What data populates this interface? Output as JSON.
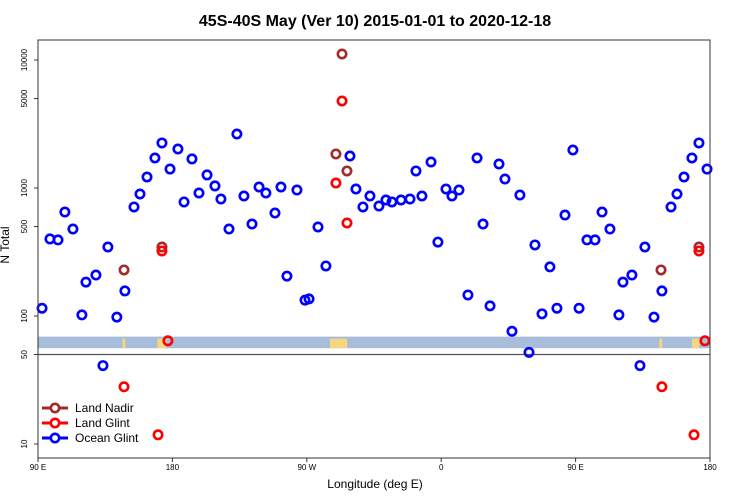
{
  "chart_data": {
    "type": "scatter",
    "title": "45S-40S May (Ver 10)   2015-01-01 to 2020-12-18",
    "xlabel": "Longitude (deg E)",
    "ylabel": "N Total",
    "x_note": "longitude unwrapped in degrees east, 90 to 540 (540 = 180)",
    "xlim": [
      90,
      540
    ],
    "ylim_log": [
      10,
      13000
    ],
    "yscale": "log",
    "x_ticks": [
      {
        "value": 90,
        "label": "90 E"
      },
      {
        "value": 180,
        "label": "180"
      },
      {
        "value": 270,
        "label": "90 W"
      },
      {
        "value": 360,
        "label": "0"
      },
      {
        "value": 450,
        "label": "90 E"
      },
      {
        "value": 540,
        "label": "180"
      }
    ],
    "y_ticks": [
      {
        "value": 10,
        "label": "10"
      },
      {
        "value": 50,
        "label": "50"
      },
      {
        "value": 100,
        "label": "100"
      },
      {
        "value": 500,
        "label": "500"
      },
      {
        "value": 1000,
        "label": "1000"
      },
      {
        "value": 5000,
        "label": "5000"
      },
      {
        "value": 10000,
        "label": "10000"
      }
    ],
    "reference_line": 50,
    "band_range": [
      56,
      69
    ],
    "band_color": "#a8bdda",
    "band_land_color": "#f8d580",
    "band_land_segments": [
      [
        146.5,
        148.5
      ],
      [
        170,
        176
      ],
      [
        285.5,
        297
      ],
      [
        506,
        508
      ],
      [
        528,
        533
      ]
    ],
    "legend_position": "bottom-left",
    "series": [
      {
        "name": "Land Nadir",
        "color": "#a52a2a",
        "points": [
          [
            147.6,
            229
          ],
          [
            173,
            346
          ],
          [
            293.6,
            11143
          ],
          [
            289.5,
            1845
          ],
          [
            296.9,
            1359
          ],
          [
            507.2,
            229
          ],
          [
            532.6,
            346
          ]
        ]
      },
      {
        "name": "Land Glint",
        "color": "#ff0000",
        "points": [
          [
            173,
            322
          ],
          [
            177,
            64
          ],
          [
            147.6,
            28
          ],
          [
            170.4,
            11.8
          ],
          [
            293.6,
            4786
          ],
          [
            289.5,
            1094
          ],
          [
            296.9,
            533
          ],
          [
            532.6,
            322
          ],
          [
            536.6,
            64
          ],
          [
            507.8,
            28
          ],
          [
            529.3,
            11.8
          ]
        ]
      },
      {
        "name": "Ocean Glint",
        "color": "#0000ff",
        "points": [
          [
            92.7,
            115
          ],
          [
            98,
            400
          ],
          [
            103.4,
            393
          ],
          [
            108,
            649
          ],
          [
            113.4,
            478
          ],
          [
            119.4,
            102
          ],
          [
            122.1,
            184
          ],
          [
            128.8,
            209
          ],
          [
            133.5,
            41
          ],
          [
            136.8,
            346
          ],
          [
            142.8,
            98
          ],
          [
            148.2,
            157
          ],
          [
            154.3,
            711
          ],
          [
            158.3,
            898
          ],
          [
            163,
            1219
          ],
          [
            168.3,
            1716
          ],
          [
            173,
            2249
          ],
          [
            178.4,
            1406
          ],
          [
            183.7,
            2017
          ],
          [
            187.8,
            778
          ],
          [
            193.1,
            1687
          ],
          [
            197.8,
            914
          ],
          [
            203.2,
            1265
          ],
          [
            208.5,
            1038
          ],
          [
            212.5,
            820
          ],
          [
            217.9,
            478
          ],
          [
            223.2,
            2642
          ],
          [
            227.9,
            866
          ],
          [
            233.3,
            523
          ],
          [
            238,
            1018
          ],
          [
            242.6,
            914
          ],
          [
            248.7,
            638
          ],
          [
            252.7,
            1018
          ],
          [
            256.7,
            205
          ],
          [
            263.4,
            964
          ],
          [
            268.8,
            133
          ],
          [
            271.5,
            136
          ],
          [
            277.5,
            496
          ],
          [
            282.8,
            246
          ],
          [
            298.9,
            1778
          ],
          [
            302.9,
            982
          ],
          [
            307.6,
            711
          ],
          [
            312.3,
            866
          ],
          [
            318.3,
            723
          ],
          [
            323,
            806
          ],
          [
            327,
            778
          ],
          [
            333.1,
            806
          ],
          [
            339.1,
            820
          ],
          [
            343.1,
            1359
          ],
          [
            347.1,
            866
          ],
          [
            353.2,
            1596
          ],
          [
            357.8,
            378
          ],
          [
            363.2,
            982
          ],
          [
            367.2,
            866
          ],
          [
            371.9,
            964
          ],
          [
            377.9,
            146
          ],
          [
            384,
            1716
          ],
          [
            388,
            523
          ],
          [
            392.7,
            120
          ],
          [
            398.7,
            1540
          ],
          [
            402.7,
            1175
          ],
          [
            407.4,
            76
          ],
          [
            412.7,
            881
          ],
          [
            418.8,
            52
          ],
          [
            422.8,
            359
          ],
          [
            427.5,
            104
          ],
          [
            432.8,
            242
          ],
          [
            437.5,
            115
          ],
          [
            442.9,
            615
          ],
          [
            448.2,
            1981
          ],
          [
            452.3,
            115
          ],
          [
            457.6,
            393
          ],
          [
            463,
            393
          ],
          [
            467.7,
            649
          ],
          [
            473,
            478
          ],
          [
            479,
            102
          ],
          [
            481.7,
            184
          ],
          [
            487.7,
            209
          ],
          [
            493.1,
            41
          ],
          [
            496.4,
            346
          ],
          [
            502.5,
            98
          ],
          [
            507.8,
            157
          ],
          [
            513.9,
            711
          ],
          [
            517.9,
            898
          ],
          [
            522.6,
            1219
          ],
          [
            527.9,
            1716
          ],
          [
            532.6,
            2249
          ],
          [
            538,
            1406
          ]
        ]
      }
    ]
  }
}
